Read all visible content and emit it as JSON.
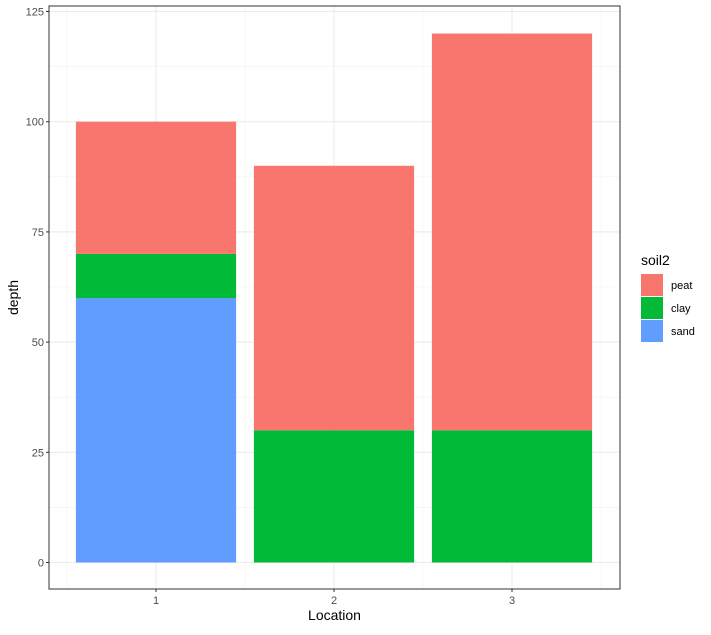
{
  "chart_data": {
    "type": "bar",
    "stacked": true,
    "categories": [
      "1",
      "2",
      "3"
    ],
    "series": [
      {
        "name": "peat",
        "color": "#F8766D",
        "values": [
          30,
          60,
          90
        ]
      },
      {
        "name": "clay",
        "color": "#00BA38",
        "values": [
          10,
          30,
          30
        ]
      },
      {
        "name": "sand",
        "color": "#619CFF",
        "values": [
          60,
          0,
          0
        ]
      }
    ],
    "stack_order_bottom_to_top": [
      "sand",
      "clay",
      "peat"
    ],
    "title": "",
    "xlabel": "Location",
    "ylabel": "depth",
    "ylim": [
      0,
      125
    ],
    "yticks": [
      0,
      25,
      50,
      75,
      100,
      125
    ],
    "grid": true,
    "legend": {
      "title": "soil2",
      "position": "right",
      "entries": [
        "peat",
        "clay",
        "sand"
      ]
    }
  }
}
